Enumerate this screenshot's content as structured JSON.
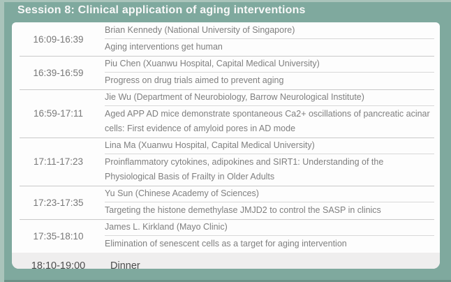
{
  "header": {
    "title": "Session 8: Clinical application of aging interventions"
  },
  "schedule": {
    "rows": [
      {
        "time": "16:09-16:39",
        "speaker": "Brian Kennedy (National University of Singapore)",
        "talk": "Aging interventions get human"
      },
      {
        "time": "16:39-16:59",
        "speaker": "Piu Chen (Xuanwu Hospital, Capital Medical University)",
        "talk": "Progress on drug trials aimed to prevent aging"
      },
      {
        "time": "16:59-17:11",
        "speaker": "Jie Wu (Department of Neurobiology, Barrow Neurological Institute)",
        "talk": "Aged APP AD mice demonstrate spontaneous Ca2+ oscillations of pancreatic acinar cells: First evidence of amyloid pores in AD mode"
      },
      {
        "time": "17:11-17:23",
        "speaker": "Lina Ma (Xuanwu Hospital, Capital Medical University)",
        "talk": "Proinflammatory cytokines, adipokines and SIRT1: Understanding of the Physiological Basis of Frailty in Older Adults"
      },
      {
        "time": "17:23-17:35",
        "speaker": "Yu Sun (Chinese Academy of Sciences)",
        "talk": "Targeting the histone demethylase JMJD2 to control the SASP in clinics"
      },
      {
        "time": "17:35-18:10",
        "speaker": "James L. Kirkland (Mayo Clinic)",
        "talk": "Elimination of senescent cells as a target for aging intervention"
      }
    ],
    "footer": {
      "time": "18:10-19:00",
      "label": "Dinner"
    }
  },
  "colors": {
    "outer_bg": "#aac4bb",
    "frame_bg": "#7fa99e",
    "title_color": "#f8f8f8",
    "card_bg": "#fdfdfd",
    "text_color": "#7f7f7f",
    "time_color": "#787878",
    "row_divider": "#c9c9c9",
    "speaker_divider": "#d8d8d8",
    "footer_bg": "#efeeee",
    "footer_text": "#4d4d4d"
  }
}
